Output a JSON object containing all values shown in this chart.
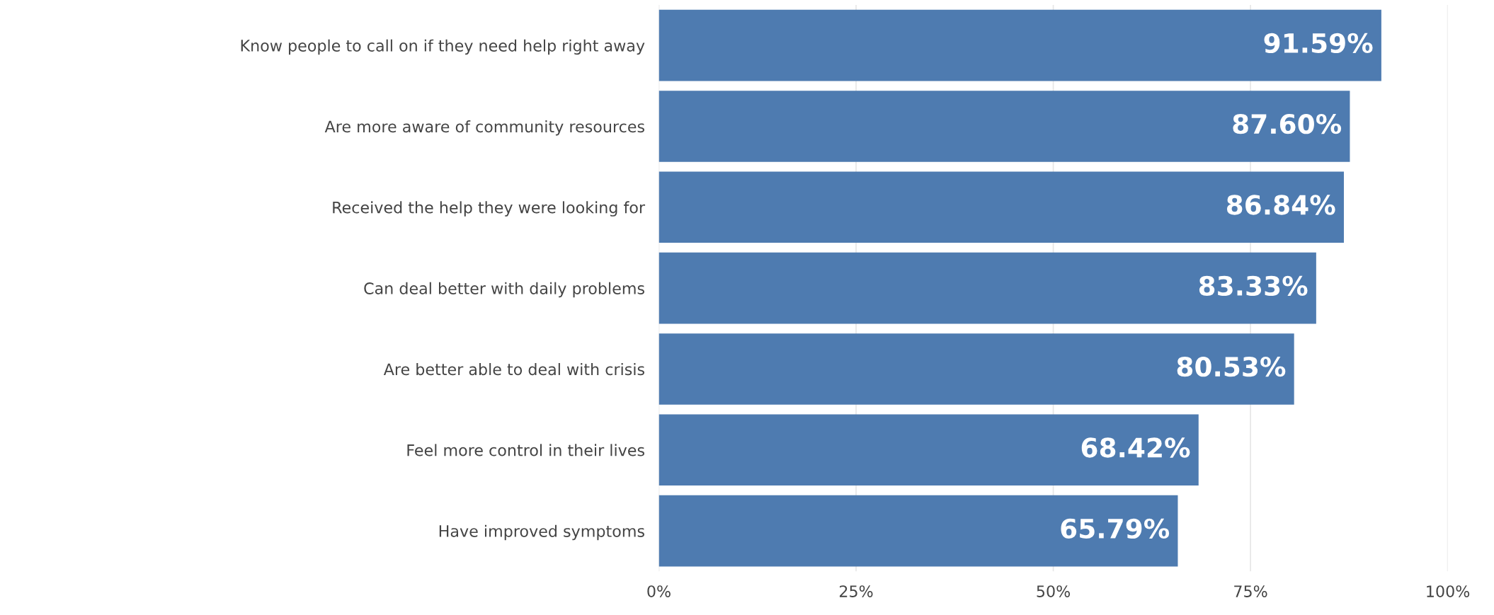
{
  "chart_data": {
    "type": "bar",
    "orientation": "horizontal",
    "categories": [
      "Know people to call on if they need help right away",
      "Are more aware of community resources",
      "Received the help they were looking for",
      "Can deal better with daily problems",
      "Are better able to deal with crisis",
      "Feel more control in their lives",
      "Have improved symptoms"
    ],
    "values": [
      91.59,
      87.6,
      86.84,
      83.33,
      80.53,
      68.42,
      65.79
    ],
    "value_labels": [
      "91.59%",
      "87.60%",
      "86.84%",
      "83.33%",
      "80.53%",
      "68.42%",
      "65.79%"
    ],
    "color": "#4e7bb0",
    "xlim": [
      0,
      100
    ],
    "xticks": [
      {
        "value": 0,
        "label": "0%"
      },
      {
        "value": 25,
        "label": "25%"
      },
      {
        "value": 50,
        "label": "50%"
      },
      {
        "value": 75,
        "label": "75%"
      },
      {
        "value": 100,
        "label": "100%"
      }
    ],
    "grid": "x"
  }
}
